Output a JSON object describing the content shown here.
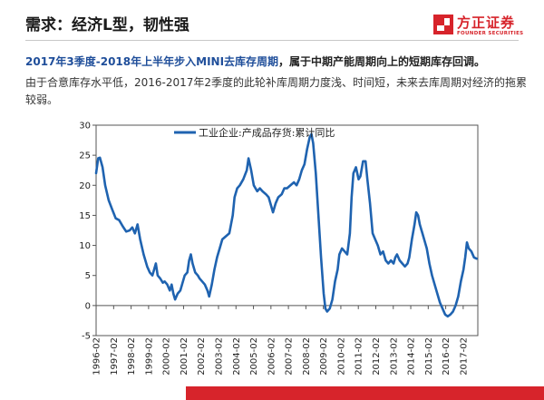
{
  "slide": {
    "title": "需求：经济L型，韧性强",
    "headline_highlight": "2017年3季度-2018年上半年步入MINI去库存周期",
    "headline_rest": "，属于中期产能周期向上的短期库存回调。",
    "body": "由于合意库存水平低，2016-2017年2季度的此轮补库周期力度浅、时间短，未来去库周期对经济的拖累较弱。"
  },
  "logo": {
    "cn": "方正证券",
    "en": "FOUNDER SECURITIES",
    "color": "#d7242b"
  },
  "colors": {
    "line": "#1f63b0",
    "accent": "#d7242b"
  },
  "chart_data": {
    "type": "line",
    "title": "",
    "xlabel": "",
    "ylabel": "",
    "ylim": [
      -5,
      30
    ],
    "yticks": [
      -5,
      0,
      5,
      10,
      15,
      20,
      25,
      30
    ],
    "xlim": [
      1996.08,
      2017.92
    ],
    "xticks": [
      "1996-02",
      "1997-02",
      "1998-02",
      "1999-02",
      "2000-02",
      "2001-02",
      "2002-02",
      "2003-02",
      "2004-02",
      "2005-02",
      "2006-02",
      "2007-02",
      "2008-02",
      "2009-02",
      "2010-02",
      "2011-02",
      "2012-02",
      "2013-02",
      "2014-02",
      "2015-02",
      "2016-02",
      "2017-02"
    ],
    "legend": "top-left",
    "grid": false,
    "series": [
      {
        "name": "工业企业:产成品存货:累计同比",
        "points": [
          [
            1996.08,
            22
          ],
          [
            1996.2,
            24.5
          ],
          [
            1996.3,
            24.6
          ],
          [
            1996.45,
            23
          ],
          [
            1996.6,
            20
          ],
          [
            1996.8,
            17.5
          ],
          [
            1997.0,
            16
          ],
          [
            1997.2,
            14.5
          ],
          [
            1997.4,
            14.2
          ],
          [
            1997.6,
            13.2
          ],
          [
            1997.8,
            12.3
          ],
          [
            1998.0,
            12.5
          ],
          [
            1998.15,
            13
          ],
          [
            1998.3,
            12
          ],
          [
            1998.45,
            13.5
          ],
          [
            1998.6,
            11
          ],
          [
            1998.8,
            8.5
          ],
          [
            1999.0,
            6.5
          ],
          [
            1999.15,
            5.5
          ],
          [
            1999.3,
            5
          ],
          [
            1999.4,
            6
          ],
          [
            1999.5,
            7
          ],
          [
            1999.6,
            5
          ],
          [
            1999.75,
            4.5
          ],
          [
            1999.9,
            3.8
          ],
          [
            2000.0,
            4
          ],
          [
            2000.15,
            3.5
          ],
          [
            2000.3,
            2.5
          ],
          [
            2000.4,
            3.5
          ],
          [
            2000.5,
            2
          ],
          [
            2000.6,
            1
          ],
          [
            2000.75,
            2
          ],
          [
            2000.9,
            2.5
          ],
          [
            2001.0,
            3.5
          ],
          [
            2001.15,
            5
          ],
          [
            2001.3,
            5.5
          ],
          [
            2001.4,
            7.5
          ],
          [
            2001.5,
            8.5
          ],
          [
            2001.6,
            7
          ],
          [
            2001.75,
            5.5
          ],
          [
            2001.9,
            5
          ],
          [
            2002.0,
            4.5
          ],
          [
            2002.15,
            4
          ],
          [
            2002.3,
            3.5
          ],
          [
            2002.45,
            2.5
          ],
          [
            2002.55,
            1.5
          ],
          [
            2002.7,
            3.5
          ],
          [
            2002.85,
            6
          ],
          [
            2003.0,
            8
          ],
          [
            2003.15,
            9.5
          ],
          [
            2003.3,
            11
          ],
          [
            2003.5,
            11.5
          ],
          [
            2003.7,
            12
          ],
          [
            2003.9,
            15
          ],
          [
            2004.0,
            18
          ],
          [
            2004.15,
            19.5
          ],
          [
            2004.3,
            20
          ],
          [
            2004.5,
            21
          ],
          [
            2004.7,
            22.5
          ],
          [
            2004.8,
            24.5
          ],
          [
            2004.95,
            22.5
          ],
          [
            2005.1,
            20
          ],
          [
            2005.3,
            19
          ],
          [
            2005.45,
            19.5
          ],
          [
            2005.6,
            19
          ],
          [
            2005.8,
            18.5
          ],
          [
            2005.95,
            18
          ],
          [
            2006.1,
            16.5
          ],
          [
            2006.2,
            15.5
          ],
          [
            2006.35,
            17
          ],
          [
            2006.5,
            18
          ],
          [
            2006.7,
            18.5
          ],
          [
            2006.85,
            19.5
          ],
          [
            2007.0,
            19.5
          ],
          [
            2007.2,
            20
          ],
          [
            2007.4,
            20.5
          ],
          [
            2007.55,
            20
          ],
          [
            2007.7,
            21
          ],
          [
            2007.85,
            22.5
          ],
          [
            2008.0,
            23.5
          ],
          [
            2008.15,
            26
          ],
          [
            2008.3,
            28
          ],
          [
            2008.4,
            28.5
          ],
          [
            2008.5,
            27
          ],
          [
            2008.65,
            22
          ],
          [
            2008.8,
            15
          ],
          [
            2008.95,
            8
          ],
          [
            2009.1,
            2
          ],
          [
            2009.2,
            -0.5
          ],
          [
            2009.3,
            -1
          ],
          [
            2009.45,
            -0.5
          ],
          [
            2009.6,
            1
          ],
          [
            2009.75,
            4
          ],
          [
            2009.9,
            6
          ],
          [
            2010.0,
            8.5
          ],
          [
            2010.15,
            9.5
          ],
          [
            2010.3,
            9
          ],
          [
            2010.45,
            8.5
          ],
          [
            2010.6,
            12
          ],
          [
            2010.7,
            18
          ],
          [
            2010.8,
            22
          ],
          [
            2010.95,
            23
          ],
          [
            2011.1,
            21
          ],
          [
            2011.2,
            21.5
          ],
          [
            2011.35,
            24
          ],
          [
            2011.5,
            24
          ],
          [
            2011.6,
            21
          ],
          [
            2011.75,
            17
          ],
          [
            2011.9,
            12
          ],
          [
            2012.05,
            11
          ],
          [
            2012.2,
            10
          ],
          [
            2012.35,
            8.5
          ],
          [
            2012.5,
            9
          ],
          [
            2012.65,
            7.5
          ],
          [
            2012.8,
            7
          ],
          [
            2012.95,
            7.5
          ],
          [
            2013.1,
            7
          ],
          [
            2013.2,
            8
          ],
          [
            2013.3,
            8.5
          ],
          [
            2013.45,
            7.5
          ],
          [
            2013.6,
            7
          ],
          [
            2013.75,
            6.5
          ],
          [
            2013.9,
            7
          ],
          [
            2014.0,
            8
          ],
          [
            2014.15,
            11
          ],
          [
            2014.3,
            13.5
          ],
          [
            2014.4,
            15.5
          ],
          [
            2014.5,
            15
          ],
          [
            2014.6,
            13.5
          ],
          [
            2014.75,
            12
          ],
          [
            2014.9,
            10.5
          ],
          [
            2015.0,
            9.5
          ],
          [
            2015.15,
            7
          ],
          [
            2015.3,
            5
          ],
          [
            2015.45,
            3.5
          ],
          [
            2015.6,
            2
          ],
          [
            2015.75,
            0.5
          ],
          [
            2015.9,
            -0.5
          ],
          [
            2016.05,
            -1.5
          ],
          [
            2016.2,
            -1.8
          ],
          [
            2016.35,
            -1.5
          ],
          [
            2016.5,
            -1
          ],
          [
            2016.65,
            0
          ],
          [
            2016.8,
            1.5
          ],
          [
            2016.95,
            4
          ],
          [
            2017.1,
            6
          ],
          [
            2017.2,
            8
          ],
          [
            2017.3,
            10.5
          ],
          [
            2017.4,
            9.5
          ],
          [
            2017.55,
            9
          ],
          [
            2017.7,
            8
          ],
          [
            2017.85,
            7.8
          ]
        ]
      }
    ]
  }
}
